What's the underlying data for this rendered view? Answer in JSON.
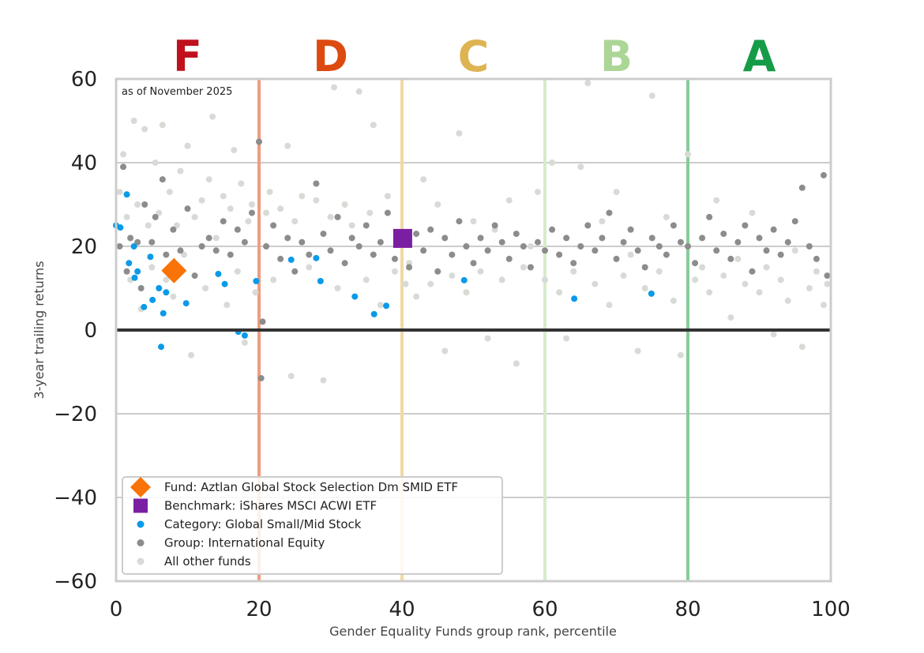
{
  "chart_data": {
    "type": "scatter",
    "annotation": "as of November 2025",
    "xlabel": "Gender Equality Funds group rank, percentile",
    "ylabel": "3-year trailing returns",
    "xlim": [
      0,
      100
    ],
    "ylim": [
      -60,
      60
    ],
    "xticks": [
      0,
      20,
      40,
      60,
      80,
      100
    ],
    "yticks": [
      -60,
      -40,
      -20,
      0,
      20,
      40,
      60
    ],
    "grid": "horizontal",
    "legend_position": "bottom-left",
    "grades": [
      {
        "label": "F",
        "x": 10,
        "color": "#c0101e"
      },
      {
        "label": "D",
        "x": 30,
        "color": "#dd4a10"
      },
      {
        "label": "C",
        "x": 50,
        "color": "#deb452"
      },
      {
        "label": "B",
        "x": 70,
        "color": "#abd696"
      },
      {
        "label": "A",
        "x": 90,
        "color": "#169c48"
      }
    ],
    "grade_lines": [
      {
        "x": 20,
        "color": "#ef9c80"
      },
      {
        "x": 40,
        "color": "#f3d8a4"
      },
      {
        "x": 60,
        "color": "#d6eccb"
      },
      {
        "x": 80,
        "color": "#86cc9a"
      }
    ],
    "series": [
      {
        "name": "All other funds",
        "color": "#d7dbd5",
        "marker": "circle",
        "points": [
          [
            0.5,
            33
          ],
          [
            1,
            42
          ],
          [
            1.5,
            27
          ],
          [
            2,
            12
          ],
          [
            2.5,
            50
          ],
          [
            3,
            30
          ],
          [
            3.5,
            5
          ],
          [
            4,
            48
          ],
          [
            4.5,
            25
          ],
          [
            5,
            15
          ],
          [
            5.5,
            40
          ],
          [
            6,
            28
          ],
          [
            6.5,
            49
          ],
          [
            7,
            12
          ],
          [
            7.5,
            33
          ],
          [
            8,
            8
          ],
          [
            8.5,
            25
          ],
          [
            9,
            38
          ],
          [
            9.5,
            18
          ],
          [
            10,
            44
          ],
          [
            10.5,
            -6
          ],
          [
            11,
            27
          ],
          [
            12,
            31
          ],
          [
            12.5,
            10
          ],
          [
            13,
            36
          ],
          [
            13.5,
            51
          ],
          [
            14,
            22
          ],
          [
            15,
            32
          ],
          [
            15.5,
            6
          ],
          [
            16,
            29
          ],
          [
            16.5,
            43
          ],
          [
            17,
            14
          ],
          [
            17.5,
            35
          ],
          [
            18,
            -3
          ],
          [
            18.5,
            26
          ],
          [
            19,
            30
          ],
          [
            19.5,
            9
          ],
          [
            21,
            28
          ],
          [
            21.5,
            33
          ],
          [
            22,
            12
          ],
          [
            23,
            29
          ],
          [
            24,
            44
          ],
          [
            24.5,
            -11
          ],
          [
            25,
            26
          ],
          [
            26,
            32
          ],
          [
            27,
            15
          ],
          [
            28,
            31
          ],
          [
            29,
            -12
          ],
          [
            30,
            27
          ],
          [
            30.5,
            58
          ],
          [
            31,
            10
          ],
          [
            32,
            30
          ],
          [
            33,
            25
          ],
          [
            34,
            57
          ],
          [
            35,
            12
          ],
          [
            35.5,
            28
          ],
          [
            36,
            49
          ],
          [
            37,
            6
          ],
          [
            38,
            32
          ],
          [
            39,
            14
          ],
          [
            40.5,
            11
          ],
          [
            41,
            16
          ],
          [
            42,
            8
          ],
          [
            43,
            36
          ],
          [
            44,
            11
          ],
          [
            45,
            30
          ],
          [
            46,
            -5
          ],
          [
            47,
            13
          ],
          [
            48,
            47
          ],
          [
            49,
            9
          ],
          [
            50,
            26
          ],
          [
            51,
            14
          ],
          [
            52,
            -2
          ],
          [
            53,
            24
          ],
          [
            54,
            12
          ],
          [
            55,
            31
          ],
          [
            56,
            -8
          ],
          [
            57,
            15
          ],
          [
            58,
            20
          ],
          [
            59,
            33
          ],
          [
            60,
            12
          ],
          [
            61,
            40
          ],
          [
            62,
            9
          ],
          [
            63,
            -2
          ],
          [
            64,
            14
          ],
          [
            65,
            39
          ],
          [
            66,
            59
          ],
          [
            67,
            11
          ],
          [
            68,
            26
          ],
          [
            69,
            6
          ],
          [
            70,
            33
          ],
          [
            71,
            13
          ],
          [
            72,
            18
          ],
          [
            73,
            -5
          ],
          [
            74,
            10
          ],
          [
            75,
            56
          ],
          [
            76,
            14
          ],
          [
            77,
            27
          ],
          [
            78,
            7
          ],
          [
            79,
            -6
          ],
          [
            80,
            42
          ],
          [
            81,
            12
          ],
          [
            82,
            15
          ],
          [
            83,
            9
          ],
          [
            84,
            31
          ],
          [
            85,
            13
          ],
          [
            86,
            3
          ],
          [
            87,
            17
          ],
          [
            88,
            11
          ],
          [
            89,
            28
          ],
          [
            90,
            9
          ],
          [
            91,
            15
          ],
          [
            92,
            -1
          ],
          [
            93,
            12
          ],
          [
            94,
            7
          ],
          [
            95,
            19
          ],
          [
            96,
            -4
          ],
          [
            97,
            10
          ],
          [
            98,
            14
          ],
          [
            99,
            6
          ],
          [
            99.5,
            11
          ]
        ]
      },
      {
        "name": "Group: International Equity",
        "color": "#8c8c8c",
        "marker": "circle",
        "points": [
          [
            0.5,
            20
          ],
          [
            1,
            39
          ],
          [
            1.5,
            14
          ],
          [
            2,
            22
          ],
          [
            3,
            21
          ],
          [
            3.5,
            10
          ],
          [
            4,
            30
          ],
          [
            5,
            21
          ],
          [
            5.5,
            27
          ],
          [
            6.5,
            36
          ],
          [
            7,
            18
          ],
          [
            8,
            24
          ],
          [
            9,
            19
          ],
          [
            10,
            29
          ],
          [
            11,
            13
          ],
          [
            12,
            20
          ],
          [
            13,
            22
          ],
          [
            14,
            19
          ],
          [
            15,
            26
          ],
          [
            16,
            18
          ],
          [
            17,
            24
          ],
          [
            18,
            21
          ],
          [
            19,
            28
          ],
          [
            20,
            45
          ],
          [
            20.3,
            -11.5
          ],
          [
            20.5,
            2
          ],
          [
            21,
            20
          ],
          [
            22,
            25
          ],
          [
            23,
            17
          ],
          [
            24,
            22
          ],
          [
            25,
            14
          ],
          [
            26,
            21
          ],
          [
            27,
            18
          ],
          [
            28,
            35
          ],
          [
            29,
            23
          ],
          [
            30,
            19
          ],
          [
            31,
            27
          ],
          [
            32,
            16
          ],
          [
            33,
            22
          ],
          [
            34,
            20
          ],
          [
            35,
            25
          ],
          [
            36,
            18
          ],
          [
            37,
            21
          ],
          [
            38,
            28
          ],
          [
            39,
            17
          ],
          [
            41,
            15
          ],
          [
            42,
            23
          ],
          [
            43,
            19
          ],
          [
            44,
            24
          ],
          [
            45,
            14
          ],
          [
            46,
            22
          ],
          [
            47,
            18
          ],
          [
            48,
            26
          ],
          [
            49,
            20
          ],
          [
            50,
            16
          ],
          [
            51,
            22
          ],
          [
            52,
            19
          ],
          [
            53,
            25
          ],
          [
            54,
            21
          ],
          [
            55,
            17
          ],
          [
            56,
            23
          ],
          [
            57,
            20
          ],
          [
            58,
            15
          ],
          [
            59,
            21
          ],
          [
            60,
            19
          ],
          [
            61,
            24
          ],
          [
            62,
            18
          ],
          [
            63,
            22
          ],
          [
            64,
            16
          ],
          [
            65,
            20
          ],
          [
            66,
            25
          ],
          [
            67,
            19
          ],
          [
            68,
            22
          ],
          [
            69,
            28
          ],
          [
            70,
            17
          ],
          [
            71,
            21
          ],
          [
            72,
            24
          ],
          [
            73,
            19
          ],
          [
            74,
            15
          ],
          [
            75,
            22
          ],
          [
            76,
            20
          ],
          [
            77,
            18
          ],
          [
            78,
            25
          ],
          [
            79,
            21
          ],
          [
            80,
            20
          ],
          [
            81,
            16
          ],
          [
            82,
            22
          ],
          [
            83,
            27
          ],
          [
            84,
            19
          ],
          [
            85,
            23
          ],
          [
            86,
            17
          ],
          [
            87,
            21
          ],
          [
            88,
            25
          ],
          [
            89,
            14
          ],
          [
            90,
            22
          ],
          [
            91,
            19
          ],
          [
            92,
            24
          ],
          [
            93,
            18
          ],
          [
            94,
            21
          ],
          [
            95,
            26
          ],
          [
            96,
            34
          ],
          [
            97,
            20
          ],
          [
            98,
            17
          ],
          [
            99,
            37
          ],
          [
            99.5,
            13
          ]
        ]
      },
      {
        "name": "Category: Global Small/Mid Stock",
        "color": "#0b9ae8",
        "marker": "circle",
        "points": [
          [
            0,
            25
          ],
          [
            0.6,
            24.5
          ],
          [
            1.5,
            32.4
          ],
          [
            1.8,
            16
          ],
          [
            2.5,
            20
          ],
          [
            2.6,
            12.5
          ],
          [
            3.9,
            5.5
          ],
          [
            4.8,
            17.5
          ],
          [
            5.1,
            7.2
          ],
          [
            6,
            10
          ],
          [
            6.3,
            -4
          ],
          [
            6.6,
            4
          ],
          [
            7,
            9
          ],
          [
            9.8,
            6.4
          ],
          [
            14.3,
            13.4
          ],
          [
            15.2,
            11
          ],
          [
            17.1,
            -0.4
          ],
          [
            18,
            -1.3
          ],
          [
            19.6,
            11.7
          ],
          [
            24.5,
            16.8
          ],
          [
            28,
            17.2
          ],
          [
            28.6,
            11.7
          ],
          [
            33.4,
            8
          ],
          [
            36.1,
            3.8
          ],
          [
            37.8,
            5.8
          ],
          [
            48.7,
            11.9
          ],
          [
            64.1,
            7.5
          ],
          [
            74.9,
            8.7
          ],
          [
            3,
            14
          ]
        ]
      },
      {
        "name": "Benchmark: iShares MSCI ACWI ETF",
        "color": "#7a1fa2",
        "marker": "square",
        "points": [
          [
            40.1,
            21.9
          ]
        ]
      },
      {
        "name": "Fund: Aztlan Global Stock Selection Dm SMID ETF",
        "color": "#f97306",
        "marker": "diamond",
        "points": [
          [
            8.1,
            14.2
          ]
        ]
      }
    ],
    "legend_order": [
      "Fund: Aztlan Global Stock Selection Dm SMID ETF",
      "Benchmark: iShares MSCI ACWI ETF",
      "Category: Global Small/Mid Stock",
      "Group: International Equity",
      "All other funds"
    ]
  }
}
